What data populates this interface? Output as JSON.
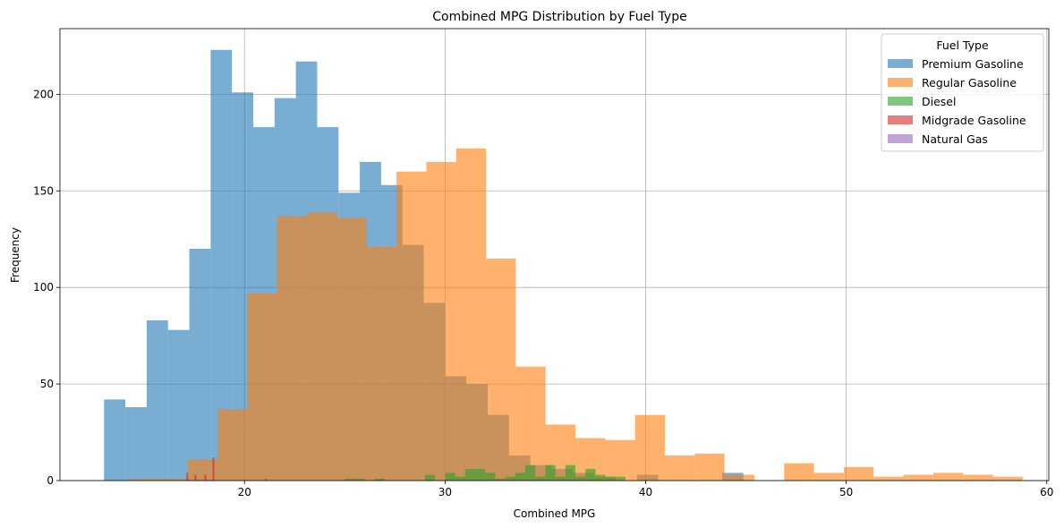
{
  "chart_data": {
    "type": "histogram",
    "title": "Combined MPG Distribution by Fuel Type",
    "xlabel": "Combined MPG",
    "ylabel": "Frequency",
    "xlim": [
      10.8,
      60.1
    ],
    "ylim": [
      0,
      234
    ],
    "xticks": [
      20,
      30,
      40,
      50,
      60
    ],
    "yticks": [
      0,
      50,
      100,
      150,
      200
    ],
    "grid": true,
    "legend": {
      "title": "Fuel Type",
      "position": "top-right"
    },
    "series": [
      {
        "name": "Premium Gasoline",
        "color": "#1f77b4",
        "opacity": 0.6,
        "bin_start": 13,
        "bin_width": 1.0625,
        "counts": [
          42,
          38,
          83,
          78,
          120,
          223,
          201,
          183,
          198,
          217,
          183,
          149,
          165,
          153,
          122,
          92,
          54,
          50,
          34,
          13,
          8,
          6,
          4,
          2,
          0,
          3,
          0,
          0,
          0,
          4
        ]
      },
      {
        "name": "Regular Gasoline",
        "color": "#ff7f0e",
        "opacity": 0.6,
        "bin_start": 14.2,
        "bin_width": 1.4867,
        "counts": [
          1,
          1,
          11,
          37,
          97,
          137,
          139,
          136,
          121,
          160,
          165,
          172,
          115,
          59,
          29,
          22,
          21,
          34,
          13,
          14,
          3,
          0,
          9,
          4,
          7,
          2,
          3,
          4,
          3,
          2
        ]
      },
      {
        "name": "Diesel",
        "color": "#2ca02c",
        "opacity": 0.6,
        "bin_start": 21,
        "bin_width": 0.5,
        "counts": [
          0,
          0,
          0,
          0,
          0,
          0,
          0,
          0,
          1,
          1,
          0,
          1,
          0,
          0,
          0,
          0,
          3,
          0,
          4,
          2,
          6,
          6,
          4,
          1,
          2,
          4,
          8,
          2,
          8,
          2,
          8,
          2,
          6,
          3,
          2,
          2
        ]
      },
      {
        "name": "Midgrade Gasoline",
        "color": "#d62728",
        "opacity": 0.6,
        "bin_start": 17.1,
        "bin_width": 0.1,
        "counts": [
          4,
          0,
          0,
          0,
          3,
          0,
          0,
          0,
          0,
          3,
          0,
          0,
          0,
          12,
          0,
          0,
          0,
          0,
          0,
          0,
          0,
          0,
          0,
          0,
          0,
          0,
          0,
          0,
          0,
          0,
          0,
          0,
          0,
          0,
          0,
          0,
          0,
          0,
          0,
          1
        ]
      },
      {
        "name": "Natural Gas",
        "color": "#9467bd",
        "opacity": 0.6,
        "bin_start": 24,
        "bin_width": 0.5,
        "counts": [
          0
        ]
      }
    ]
  }
}
